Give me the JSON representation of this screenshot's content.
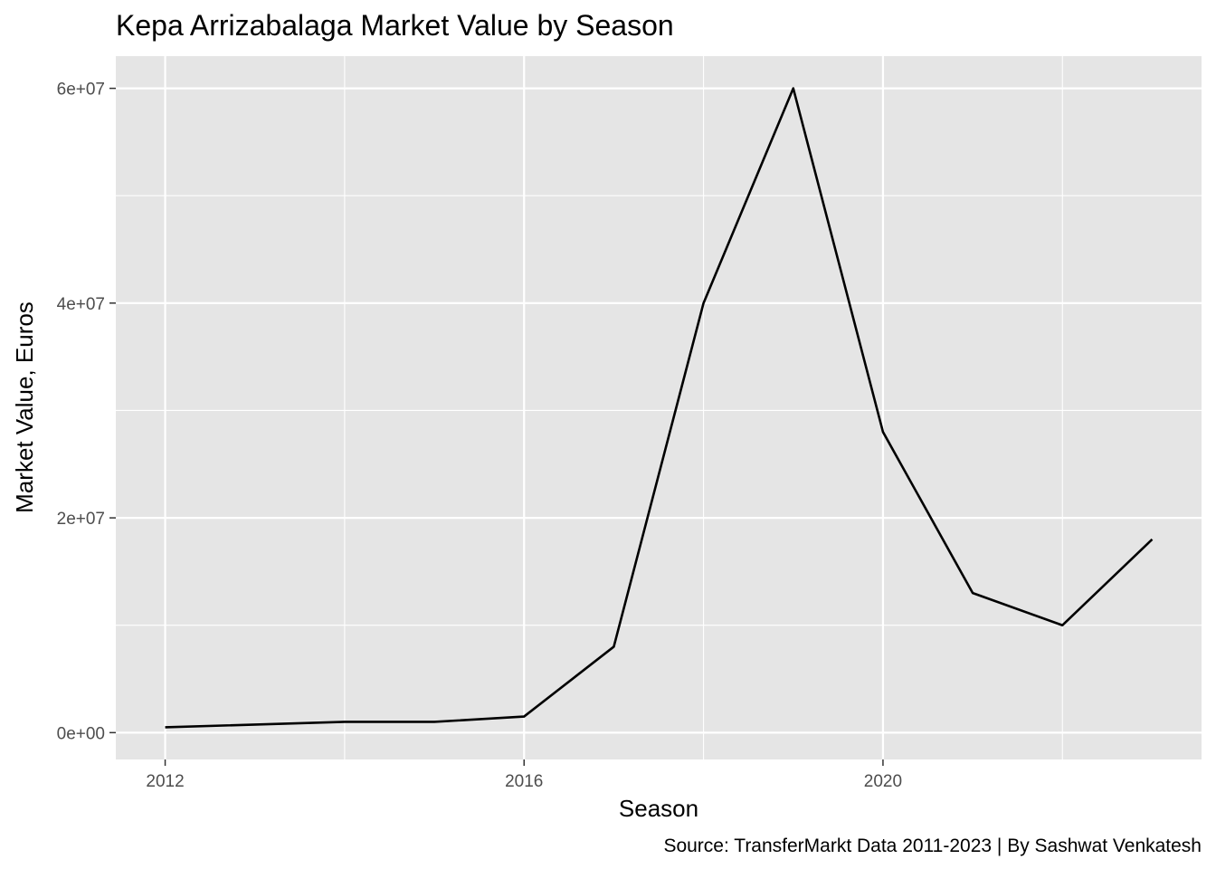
{
  "chart_data": {
    "type": "line",
    "title": "Kepa Arrizabalaga Market Value by Season",
    "xlabel": "Season",
    "ylabel": "Market Value, Euros",
    "caption": "Source: TransferMarkt Data 2011-2023 | By Sashwat Venkatesh",
    "x_ticks": [
      {
        "value": 2012,
        "label": "2012"
      },
      {
        "value": 2016,
        "label": "2016"
      },
      {
        "value": 2020,
        "label": "2020"
      }
    ],
    "y_ticks": [
      {
        "value": 0,
        "label": "0e+00"
      },
      {
        "value": 20000000,
        "label": "2e+07"
      },
      {
        "value": 40000000,
        "label": "4e+07"
      },
      {
        "value": 60000000,
        "label": "6e+07"
      }
    ],
    "xlim": [
      2011.45,
      2023.55
    ],
    "ylim": [
      -2500000,
      63000000
    ],
    "grid": true,
    "series": [
      {
        "x": [
          2012,
          2014,
          2015,
          2016,
          2017,
          2018,
          2019,
          2020,
          2021,
          2022,
          2023
        ],
        "y": [
          500000,
          1000000,
          1000000,
          1500000,
          8000000,
          40000000,
          60000000,
          28000000,
          13000000,
          10000000,
          18000000
        ],
        "color": "#000000"
      }
    ],
    "colors": {
      "panel": "#e5e5e5",
      "grid": "#ffffff",
      "line": "#000000",
      "tick_text": "#4d4d4d"
    }
  }
}
